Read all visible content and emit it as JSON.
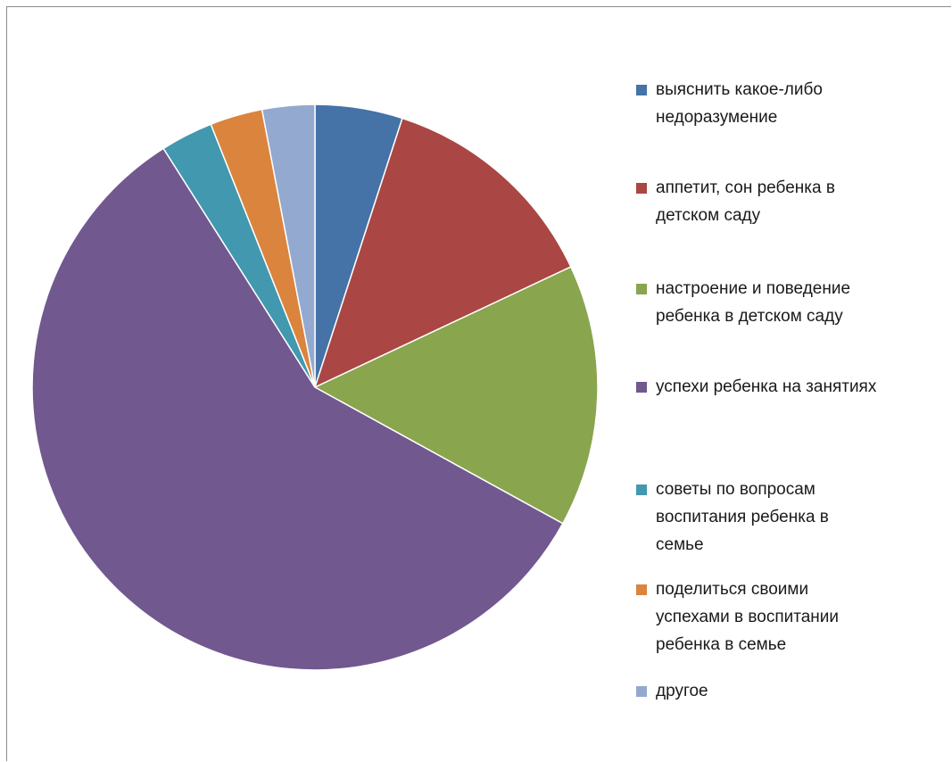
{
  "chart_data": {
    "type": "pie",
    "title": "",
    "slices": [
      {
        "label": "выяснить какое-либо недоразумение",
        "value": 5,
        "color": "#4572A7"
      },
      {
        "label": "аппетит, сон ребенка в детском саду",
        "value": 13,
        "color": "#AA4643"
      },
      {
        "label": "настроение и поведение ребенка в детском саду",
        "value": 15,
        "color": "#89A54E"
      },
      {
        "label": "успехи ребенка на занятиях",
        "value": 58,
        "color": "#71588F"
      },
      {
        "label": "советы по вопросам воспитания ребенка в семье",
        "value": 3,
        "color": "#4198AF"
      },
      {
        "label": "поделиться своими успехами в воспитании ребенка в семье",
        "value": 3,
        "color": "#DB843D"
      },
      {
        "label": "другое",
        "value": 3,
        "color": "#93A9CF"
      }
    ],
    "legend_position": "right"
  },
  "legend": {
    "items": [
      {
        "lines": [
          "выяснить какое-либо",
          "недоразумение"
        ]
      },
      {
        "lines": [
          "аппетит, сон ребенка в",
          "детском саду"
        ]
      },
      {
        "lines": [
          "настроение и поведение",
          "ребенка в детском саду"
        ]
      },
      {
        "lines": [
          "успехи ребенка на занятиях"
        ]
      },
      {
        "lines": [
          "советы по вопросам",
          "воспитания ребенка в",
          "семье"
        ]
      },
      {
        "lines": [
          "поделиться своими",
          "успехами в воспитании",
          "ребенка в семье"
        ]
      },
      {
        "lines": [
          "другое"
        ]
      }
    ]
  }
}
